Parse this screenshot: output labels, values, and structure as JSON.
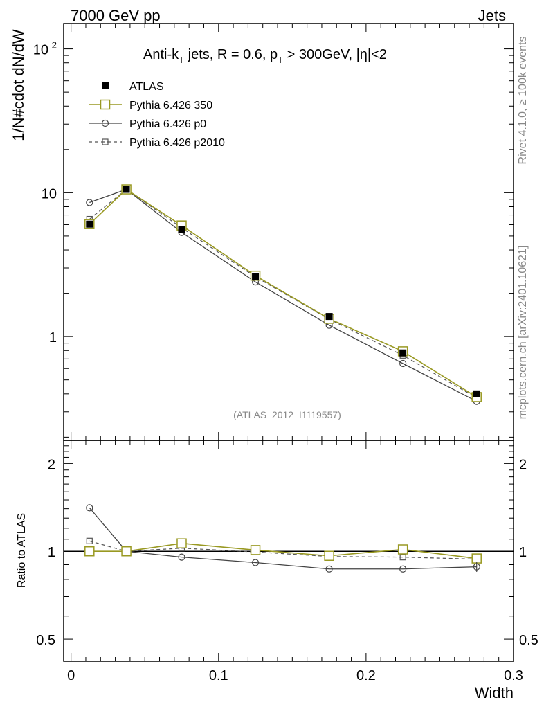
{
  "header": {
    "left": "7000 GeV pp",
    "right": "Jets"
  },
  "side": {
    "rivet": "Rivet 4.1.0, ≥ 100k events",
    "mcplots": "mcplots.cern.ch [arXiv:2401.10621]"
  },
  "watermark": "(ATLAS_2012_I1119557)",
  "colors": {
    "data": "#000000",
    "p350": "#999922",
    "p0": "#444444",
    "p2010": "#555555",
    "frame": "#000000"
  },
  "chart_data": [
    {
      "type": "line",
      "title_parts": {
        "a": "Anti-k",
        "a_sub": "T",
        "b": " jets, R = 0.6, p",
        "b_sub": "T",
        "c": " > 300GeV, |",
        "c_eta": "η",
        "d": "|<2"
      },
      "xlabel": "Width",
      "ylabel": "1/N#cdot dN/dW",
      "yscale": "log",
      "xlim": [
        -0.005,
        0.3
      ],
      "ylim": [
        0.19,
        150
      ],
      "yticks": [
        {
          "value": 100,
          "base": "10",
          "exp": "2"
        },
        {
          "value": 10,
          "base": "10",
          "exp": ""
        },
        {
          "value": 1,
          "base": "1",
          "exp": ""
        }
      ],
      "x": [
        0.0125,
        0.0375,
        0.075,
        0.125,
        0.175,
        0.225,
        0.275
      ],
      "series": [
        {
          "name": "ATLAS",
          "key": "data",
          "values": [
            6.05,
            10.55,
            5.55,
            2.62,
            1.38,
            0.77,
            0.4
          ]
        },
        {
          "name": "Pythia 6.426 350",
          "key": "p350",
          "values": [
            6.05,
            10.55,
            5.92,
            2.65,
            1.33,
            0.79,
            0.38
          ]
        },
        {
          "name": "Pythia 6.426 p0",
          "key": "p0",
          "values": [
            8.55,
            10.55,
            5.3,
            2.4,
            1.2,
            0.65,
            0.355
          ]
        },
        {
          "name": "Pythia 6.426 p2010",
          "key": "p2010",
          "values": [
            6.55,
            10.55,
            5.7,
            2.6,
            1.32,
            0.74,
            0.375
          ]
        }
      ]
    },
    {
      "type": "line",
      "ylabel": "Ratio to ATLAS",
      "xlabel": "Width",
      "yscale": "log",
      "ylim": [
        0.42,
        2.4
      ],
      "xlim": [
        -0.005,
        0.3
      ],
      "xticks": [
        {
          "value": 0,
          "label": "0"
        },
        {
          "value": 0.1,
          "label": "0.1"
        },
        {
          "value": 0.2,
          "label": "0.2"
        },
        {
          "value": 0.3,
          "label": "0.3"
        }
      ],
      "yticks": [
        {
          "value": 2,
          "label": "2"
        },
        {
          "value": 1,
          "label": "1"
        },
        {
          "value": 0.5,
          "label": "0.5"
        }
      ],
      "x": [
        0.0125,
        0.0375,
        0.075,
        0.125,
        0.175,
        0.225,
        0.275
      ],
      "series": [
        {
          "name": "Pythia 6.426 350",
          "key": "p350",
          "values": [
            1.0,
            1.0,
            1.065,
            1.01,
            0.965,
            1.015,
            0.945
          ]
        },
        {
          "name": "Pythia 6.426 p0",
          "key": "p0",
          "values": [
            1.41,
            1.0,
            0.955,
            0.915,
            0.87,
            0.87,
            0.885
          ]
        },
        {
          "name": "Pythia 6.426 p2010",
          "key": "p2010",
          "values": [
            1.085,
            1.0,
            1.025,
            0.995,
            0.96,
            0.955,
            0.94
          ]
        }
      ]
    }
  ]
}
